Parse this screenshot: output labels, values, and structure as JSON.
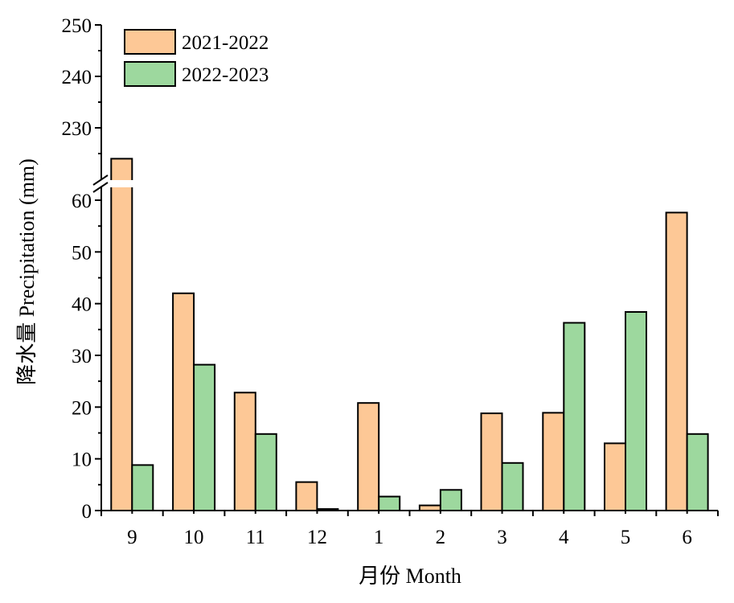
{
  "chart_data": {
    "type": "bar",
    "title": "",
    "xlabel": "月份 Month",
    "ylabel": "降水量 Precipitation (mm)",
    "categories": [
      "9",
      "10",
      "11",
      "12",
      "1",
      "2",
      "3",
      "4",
      "5",
      "6"
    ],
    "series": [
      {
        "name": "2021-2022",
        "color": "#fdc896",
        "values": [
          224,
          42,
          22.8,
          5.5,
          20.8,
          1,
          18.8,
          18.9,
          13,
          57.6
        ]
      },
      {
        "name": "2022-2023",
        "color": "#9dd89e",
        "values": [
          8.8,
          28.2,
          14.8,
          0.3,
          2.7,
          4,
          9.2,
          36.3,
          38.4,
          14.8
        ]
      }
    ],
    "y_axis": {
      "broken": true,
      "lower_range": [
        0,
        60
      ],
      "upper_range": [
        220,
        250
      ],
      "lower_ticks": [
        "0",
        "10",
        "20",
        "30",
        "40",
        "50",
        "60"
      ],
      "upper_ticks": [
        "230",
        "240",
        "250"
      ]
    },
    "legend_position": "top-left",
    "grid": false
  }
}
